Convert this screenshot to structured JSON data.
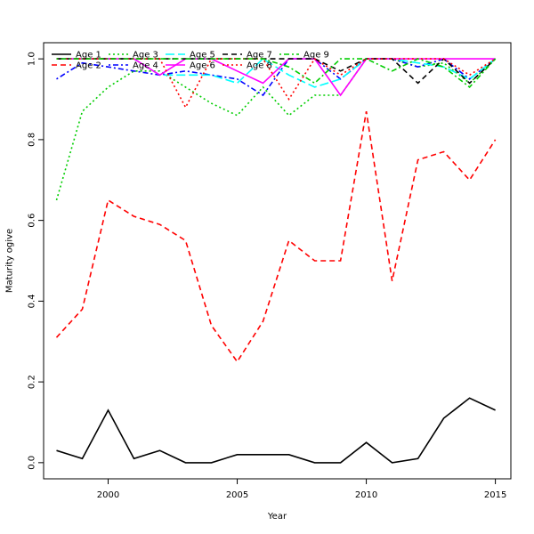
{
  "chart_data": {
    "type": "line",
    "title": "",
    "xlabel": "Year",
    "ylabel": "Maturity ogive",
    "xlim": [
      1997.5,
      2015.6
    ],
    "ylim": [
      -0.04,
      1.04
    ],
    "xticks": [
      2000,
      2005,
      2010,
      2015
    ],
    "yticks": [
      0.0,
      0.2,
      0.4,
      0.6,
      0.8,
      1.0
    ],
    "xtick_labels": [
      "2000",
      "2005",
      "2010",
      "2015"
    ],
    "ytick_labels": [
      "0.0",
      "0.2",
      "0.4",
      "0.6",
      "0.8",
      "1.0"
    ],
    "grid": false,
    "legend_position": "top-left",
    "x": [
      1998,
      1999,
      2000,
      2001,
      2002,
      2003,
      2004,
      2005,
      2006,
      2007,
      2008,
      2009,
      2010,
      2011,
      2012,
      2013,
      2014,
      2015
    ],
    "series": [
      {
        "name": "Age 1",
        "color": "#000000",
        "dash": "solid",
        "values": [
          0.03,
          0.01,
          0.13,
          0.01,
          0.03,
          0.0,
          0.0,
          0.02,
          0.02,
          0.02,
          0.0,
          0.0,
          0.05,
          0.0,
          0.01,
          0.11,
          0.16,
          0.13
        ]
      },
      {
        "name": "Age 2",
        "color": "#ff0000",
        "dash": "dashed",
        "values": [
          0.31,
          0.38,
          0.65,
          0.61,
          0.59,
          0.55,
          0.34,
          0.25,
          0.35,
          0.55,
          0.5,
          0.5,
          0.87,
          0.45,
          0.75,
          0.77,
          0.7,
          0.8
        ]
      },
      {
        "name": "Age 3",
        "color": "#00cd00",
        "dash": "dotted",
        "values": [
          0.65,
          0.87,
          0.93,
          0.97,
          0.97,
          0.93,
          0.89,
          0.86,
          0.93,
          0.86,
          0.91,
          0.91,
          1.0,
          1.0,
          0.98,
          0.99,
          0.94,
          1.0
        ]
      },
      {
        "name": "Age 4",
        "color": "#0000ff",
        "dash": "dotdash",
        "values": [
          0.95,
          0.99,
          0.98,
          0.97,
          0.96,
          0.97,
          0.96,
          0.95,
          0.91,
          1.0,
          1.0,
          0.95,
          1.0,
          1.0,
          0.98,
          1.0,
          0.95,
          1.0
        ]
      },
      {
        "name": "Age 5",
        "color": "#00ffff",
        "dash": "longdash",
        "values": [
          1.0,
          1.0,
          1.0,
          1.0,
          0.96,
          0.96,
          0.96,
          0.94,
          1.0,
          0.96,
          0.93,
          0.95,
          1.0,
          1.0,
          0.99,
          0.98,
          0.95,
          1.0
        ]
      },
      {
        "name": "Age 6",
        "color": "#ff00ff",
        "dash": "solid",
        "values": [
          1.0,
          1.0,
          1.0,
          1.0,
          0.96,
          1.0,
          1.0,
          0.97,
          0.94,
          1.0,
          1.0,
          0.91,
          1.0,
          1.0,
          1.0,
          1.0,
          1.0,
          1.0
        ]
      },
      {
        "name": "Age 7",
        "color": "#000000",
        "dash": "dashed",
        "values": [
          1.0,
          1.0,
          1.0,
          1.0,
          1.0,
          1.0,
          1.0,
          1.0,
          1.0,
          1.0,
          1.0,
          0.97,
          1.0,
          1.0,
          0.94,
          1.0,
          0.94,
          1.0
        ]
      },
      {
        "name": "Age 8",
        "color": "#ff0000",
        "dash": "dotted",
        "values": [
          1.0,
          1.0,
          1.0,
          1.0,
          1.0,
          0.88,
          1.0,
          1.0,
          1.0,
          0.9,
          1.0,
          0.96,
          1.0,
          1.0,
          1.0,
          1.0,
          0.96,
          1.0
        ]
      },
      {
        "name": "Age 9",
        "color": "#00cd00",
        "dash": "dotdash",
        "values": [
          1.0,
          1.0,
          1.0,
          1.0,
          1.0,
          1.0,
          1.0,
          1.0,
          1.0,
          0.98,
          0.94,
          1.0,
          1.0,
          0.97,
          1.0,
          0.98,
          0.93,
          1.0
        ]
      }
    ]
  }
}
